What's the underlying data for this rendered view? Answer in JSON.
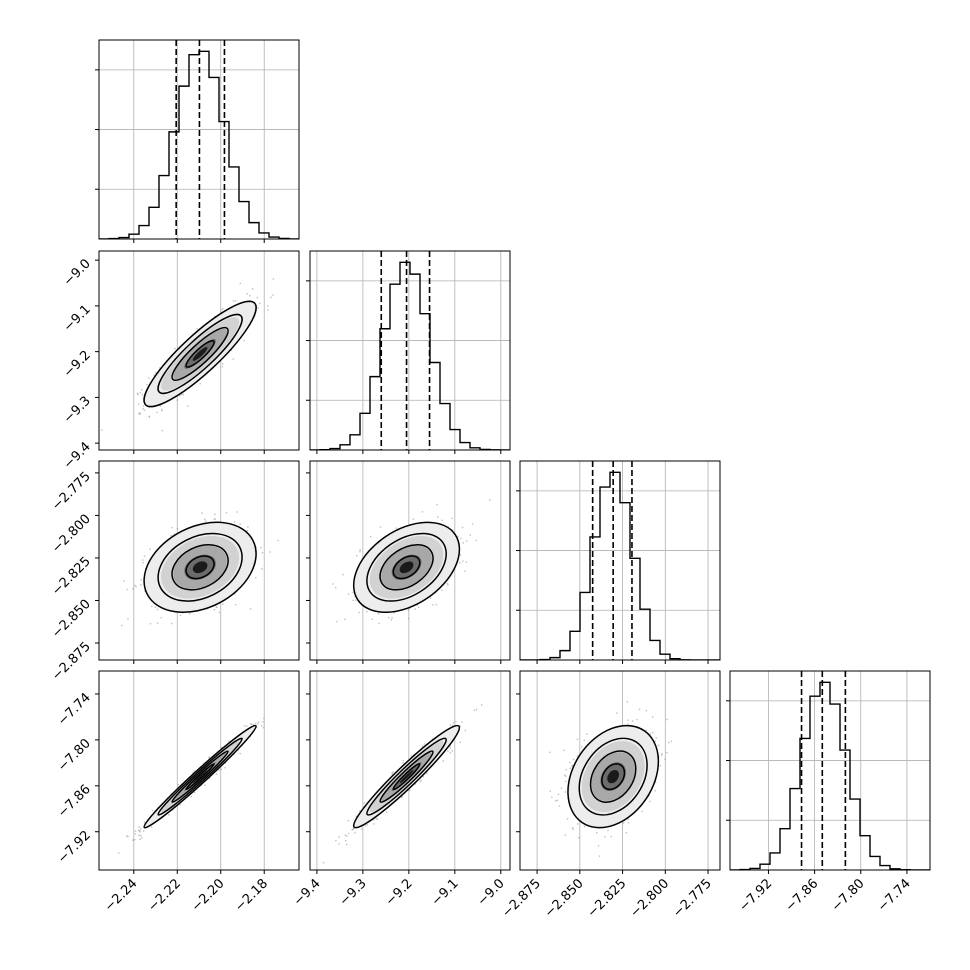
{
  "chart_data": {
    "type": "corner",
    "parameters": [
      {
        "ticks": [
          "−2.24",
          "−2.22",
          "−2.20",
          "−2.18"
        ],
        "tick_values": [
          -2.24,
          -2.22,
          -2.2,
          -2.18
        ],
        "range": [
          -2.256,
          -2.164
        ],
        "quantiles": [
          -2.2205,
          -2.2098,
          -2.1983
        ],
        "mean": -2.2095,
        "sd": 0.0112
      },
      {
        "ticks": [
          "−9.4",
          "−9.3",
          "−9.2",
          "−9.1",
          "−9.0"
        ],
        "tick_values": [
          -9.4,
          -9.3,
          -9.2,
          -9.1,
          -9.0
        ],
        "range": [
          -9.415,
          -8.98
        ],
        "quantiles": [
          -9.26,
          -9.205,
          -9.155
        ],
        "mean": -9.205,
        "sd": 0.05
      },
      {
        "ticks": [
          "−2.875",
          "−2.850",
          "−2.825",
          "−2.800",
          "−2.775"
        ],
        "tick_values": [
          -2.875,
          -2.85,
          -2.825,
          -2.8,
          -2.775
        ],
        "range": [
          -2.885,
          -2.768
        ],
        "quantiles": [
          -2.8425,
          -2.8305,
          -2.8195
        ],
        "mean": -2.8305,
        "sd": 0.0115
      },
      {
        "ticks": [
          "−7.92",
          "−7.86",
          "−7.80",
          "−7.74"
        ],
        "tick_values": [
          -7.92,
          -7.86,
          -7.8,
          -7.74
        ],
        "range": [
          -7.97,
          -7.71
        ],
        "quantiles": [
          -7.877,
          -7.85,
          -7.82
        ],
        "mean": -7.848,
        "sd": 0.029
      }
    ],
    "correlations": [
      {
        "row": 1,
        "col": 0,
        "r": 0.88
      },
      {
        "row": 2,
        "col": 0,
        "r": 0.3
      },
      {
        "row": 2,
        "col": 1,
        "r": 0.4
      },
      {
        "row": 3,
        "col": 0,
        "r": 0.985
      },
      {
        "row": 3,
        "col": 1,
        "r": 0.96
      },
      {
        "row": 3,
        "col": 2,
        "r": 0.3
      }
    ],
    "histogram_bins": 20,
    "contour_levels_sigma": [
      0.5,
      1.0,
      1.5,
      2.0
    ],
    "grid": true
  }
}
